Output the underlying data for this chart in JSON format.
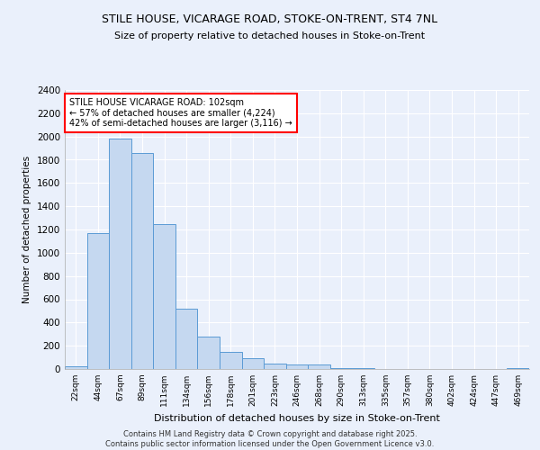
{
  "title1": "STILE HOUSE, VICARAGE ROAD, STOKE-ON-TRENT, ST4 7NL",
  "title2": "Size of property relative to detached houses in Stoke-on-Trent",
  "xlabel": "Distribution of detached houses by size in Stoke-on-Trent",
  "ylabel": "Number of detached properties",
  "categories": [
    "22sqm",
    "44sqm",
    "67sqm",
    "89sqm",
    "111sqm",
    "134sqm",
    "156sqm",
    "178sqm",
    "201sqm",
    "223sqm",
    "246sqm",
    "268sqm",
    "290sqm",
    "313sqm",
    "335sqm",
    "357sqm",
    "380sqm",
    "402sqm",
    "424sqm",
    "447sqm",
    "469sqm"
  ],
  "values": [
    25,
    1170,
    1980,
    1860,
    1250,
    520,
    275,
    150,
    90,
    45,
    35,
    35,
    5,
    5,
    3,
    3,
    2,
    2,
    2,
    2,
    10
  ],
  "bar_color": "#c5d8f0",
  "bar_edge_color": "#5b9bd5",
  "annotation_line0": "STILE HOUSE VICARAGE ROAD: 102sqm",
  "annotation_line1": "← 57% of detached houses are smaller (4,224)",
  "annotation_line2": "42% of semi-detached houses are larger (3,116) →",
  "ylim": [
    0,
    2400
  ],
  "yticks": [
    0,
    200,
    400,
    600,
    800,
    1000,
    1200,
    1400,
    1600,
    1800,
    2000,
    2200,
    2400
  ],
  "bg_color": "#eaf0fb",
  "grid_color": "#ffffff",
  "footnote1": "Contains HM Land Registry data © Crown copyright and database right 2025.",
  "footnote2": "Contains public sector information licensed under the Open Government Licence v3.0."
}
